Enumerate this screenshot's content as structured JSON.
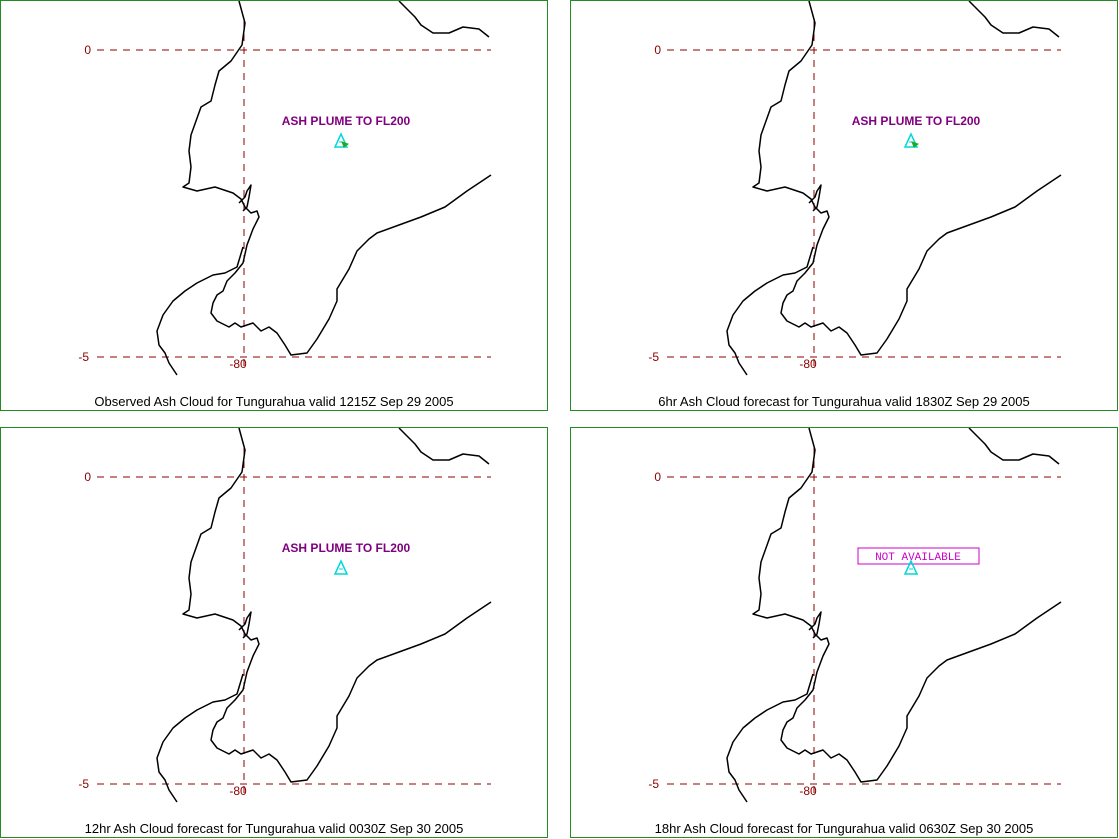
{
  "panels": [
    {
      "caption": "Observed Ash Cloud for Tungurahua valid 1215Z Sep 29 2005",
      "annotation": {
        "text": "ASH PLUME TO FL200",
        "style": "plain"
      },
      "plume": true
    },
    {
      "caption": "6hr Ash Cloud forecast for Tungurahua valid 1830Z Sep 29 2005",
      "annotation": {
        "text": "ASH PLUME TO FL200",
        "style": "plain"
      },
      "plume": true
    },
    {
      "caption": "12hr Ash Cloud forecast for Tungurahua valid 0030Z Sep 30 2005",
      "annotation": {
        "text": "ASH PLUME TO FL200",
        "style": "plain"
      },
      "plume": false
    },
    {
      "caption": "18hr Ash Cloud forecast for Tungurahua valid 0630Z Sep 30 2005",
      "annotation": {
        "text": "NOT AVAILABLE",
        "style": "boxed"
      },
      "plume": false
    }
  ],
  "grid": {
    "lat_top": "0",
    "lat_bottom": "-5",
    "lon": "-80"
  },
  "volcano_icon": "triangle-icon",
  "colors": {
    "border": "#228b22",
    "grid": "#8b0000",
    "tick_label": "#8b0000",
    "coast": "#000000",
    "annotation": "#800080",
    "not_available": "#cc00cc",
    "volcano": "#00d8d8",
    "plume": "#22aa22"
  }
}
